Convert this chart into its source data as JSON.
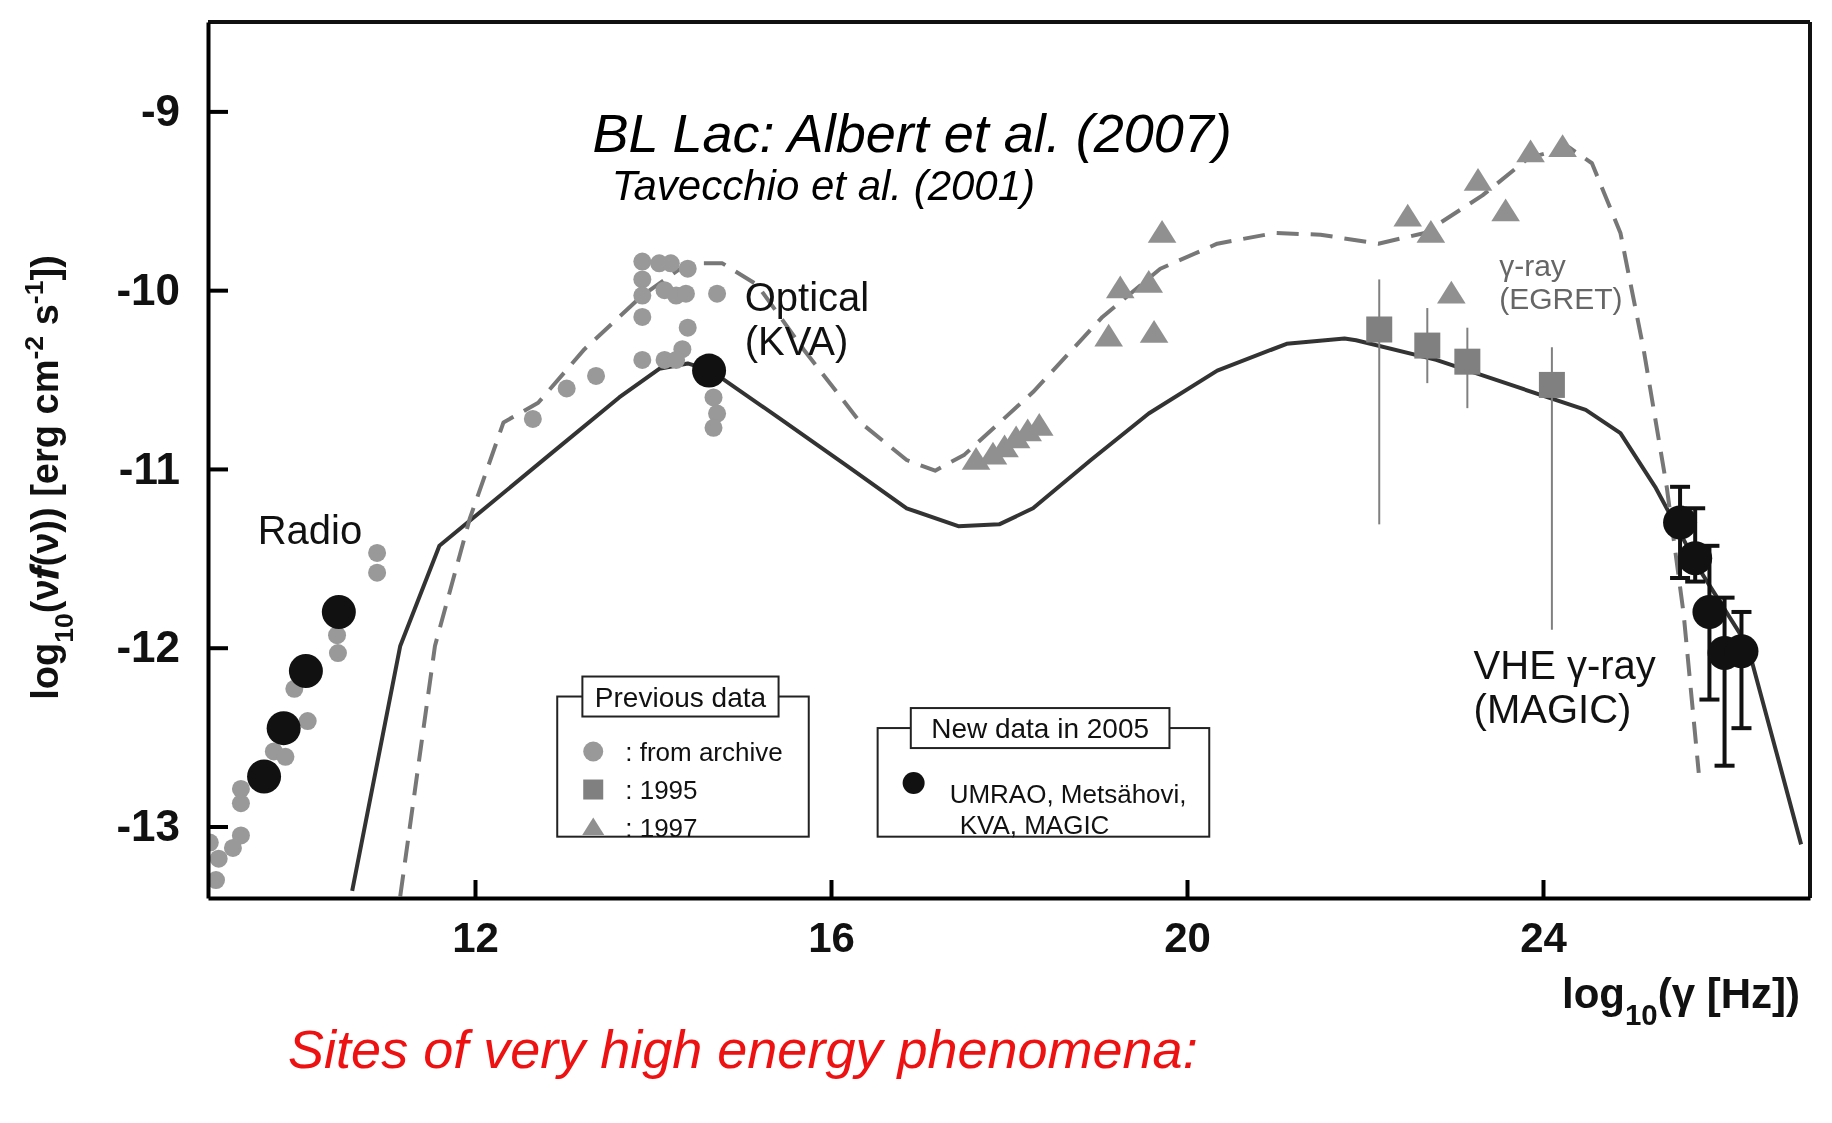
{
  "chart_data": {
    "type": "scatter",
    "title": "BL Lac: Albert et al. (2007)",
    "subtitle": "Tavecchio et al. (2001)",
    "xlabel": "log$_{10}$(γ [Hz])",
    "ylabel": "log$_{10}$(ν𝒇(ν)) [erg cm$^{-2}$ s$^{-1}$])",
    "xlim": [
      9,
      27
    ],
    "ylim": [
      -13.4,
      -8.5
    ],
    "xticks": [
      12,
      16,
      20,
      24
    ],
    "yticks": [
      -13,
      -12,
      -11,
      -10,
      -9
    ],
    "legend": "bottom",
    "grid": false,
    "series": [
      {
        "type": "line",
        "color": "#333333",
        "line_style": "solid",
        "marker": "none",
        "x": [
          10.62,
          11.16,
          11.6,
          12.84,
          13.62,
          14.07,
          14.39,
          14.65,
          15.43,
          16.2,
          16.85,
          17.43,
          17.89,
          18.27,
          18.92,
          19.57,
          20.34,
          21.12,
          21.77,
          21.9,
          22.8,
          23.7,
          24.48,
          24.87,
          25.26,
          25.78,
          26.3,
          26.62,
          26.9
        ],
        "values": [
          -13.36,
          -11.99,
          -11.43,
          -10.92,
          -10.6,
          -10.44,
          -10.41,
          -10.45,
          -10.72,
          -10.99,
          -11.22,
          -11.32,
          -11.31,
          -11.22,
          -10.95,
          -10.69,
          -10.45,
          -10.3,
          -10.27,
          -10.28,
          -10.39,
          -10.54,
          -10.67,
          -10.8,
          -11.1,
          -11.58,
          -11.99,
          -12.58,
          -13.1
        ]
      },
      {
        "type": "line",
        "color": "#777777",
        "line_style": "dashed",
        "marker": "none",
        "x": [
          11.16,
          11.55,
          11.94,
          12.32,
          12.71,
          13.23,
          13.88,
          14.39,
          14.78,
          15.17,
          15.69,
          16.33,
          16.85,
          17.17,
          17.5,
          18.27,
          19.05,
          19.7,
          20.34,
          20.99,
          21.5,
          22.15,
          22.67,
          23.32,
          23.84,
          24.29,
          24.55,
          24.87,
          25.13,
          25.39,
          25.58,
          25.75
        ],
        "values": [
          -13.39,
          -11.99,
          -11.28,
          -10.74,
          -10.63,
          -10.33,
          -10.03,
          -9.85,
          -9.85,
          -9.97,
          -10.33,
          -10.74,
          -10.95,
          -11.01,
          -10.92,
          -10.57,
          -10.15,
          -9.88,
          -9.74,
          -9.68,
          -9.69,
          -9.74,
          -9.68,
          -9.47,
          -9.26,
          -9.2,
          -9.29,
          -9.68,
          -10.33,
          -11.1,
          -11.81,
          -12.7
        ]
      },
      {
        "name": ":  from archive",
        "color": "#999999",
        "marker": "circle",
        "x": [
          9.02,
          9.12,
          9.09,
          9.28,
          9.37,
          9.37,
          9.37,
          9.74,
          9.87,
          9.97,
          10.12,
          10.45,
          10.46,
          10.9,
          10.9,
          12.65,
          13.03,
          13.36,
          13.88,
          13.88,
          13.88,
          13.88,
          13.88,
          14.07,
          14.13,
          14.13,
          14.2,
          14.26,
          14.33,
          14.39,
          14.39,
          14.37,
          14.26,
          14.72,
          14.68,
          14.72,
          14.68
        ],
        "values": [
          -13.09,
          -13.18,
          -13.3,
          -13.12,
          -13.05,
          -12.79,
          -12.87,
          -12.58,
          -12.61,
          -12.23,
          -12.41,
          -11.93,
          -12.03,
          -11.47,
          -11.58,
          -10.72,
          -10.55,
          -10.48,
          -9.84,
          -9.94,
          -10.03,
          -10.15,
          -10.39,
          -9.85,
          -10.0,
          -10.39,
          -9.85,
          -10.03,
          -10.33,
          -10.21,
          -9.88,
          -10.02,
          -10.39,
          -10.02,
          -10.6,
          -10.69,
          -10.77
        ]
      },
      {
        "name": ": 1995",
        "color": "#808080",
        "marker": "square",
        "x": [
          22.16,
          22.7,
          23.15,
          24.1
        ],
        "values": [
          -10.22,
          -10.31,
          -10.4,
          -10.53
        ],
        "errors": [
          [
            -11.31,
            -9.94
          ],
          [
            -10.52,
            -10.1
          ],
          [
            -10.66,
            -10.21
          ],
          [
            -11.9,
            -10.32
          ]
        ]
      },
      {
        "name": ": 1997",
        "color": "#909090",
        "marker": "triangle",
        "x": [
          17.63,
          17.82,
          17.95,
          18.08,
          18.21,
          18.34,
          19.12,
          19.25,
          19.57,
          19.63,
          19.72,
          22.48,
          22.74,
          22.97,
          23.27,
          23.58,
          23.86,
          24.22
        ],
        "values": [
          -10.95,
          -10.92,
          -10.88,
          -10.83,
          -10.79,
          -10.76,
          -10.26,
          -9.99,
          -9.96,
          -10.24,
          -9.68,
          -9.59,
          -9.68,
          -10.02,
          -9.39,
          -9.56,
          -9.23,
          -9.2
        ]
      },
      {
        "name": "UMRAO, Metsähovi, KVA, MAGIC",
        "color": "#111111",
        "marker": "circle",
        "x": [
          9.63,
          9.85,
          10.1,
          10.47,
          14.63,
          25.54,
          25.71,
          25.87,
          26.04,
          26.23
        ],
        "values": [
          -12.72,
          -12.45,
          -12.13,
          -11.8,
          -10.45,
          -11.3,
          -11.5,
          -11.8,
          -12.03,
          -12.02
        ],
        "errors": [
          null,
          null,
          null,
          null,
          null,
          [
            -11.61,
            -11.1
          ],
          [
            -11.63,
            -11.22
          ],
          [
            -12.29,
            -11.43
          ],
          [
            -12.66,
            -11.72
          ],
          [
            -12.45,
            -11.8
          ]
        ]
      }
    ],
    "annotations": [
      "Previous data",
      "New data in 2005",
      "Radio",
      "Optical\n(KVA)",
      "γ-ray\n(EGRET)",
      "VHE γ-ray\n(MAGIC)",
      "Sites of very high energy phenomena:"
    ]
  }
}
